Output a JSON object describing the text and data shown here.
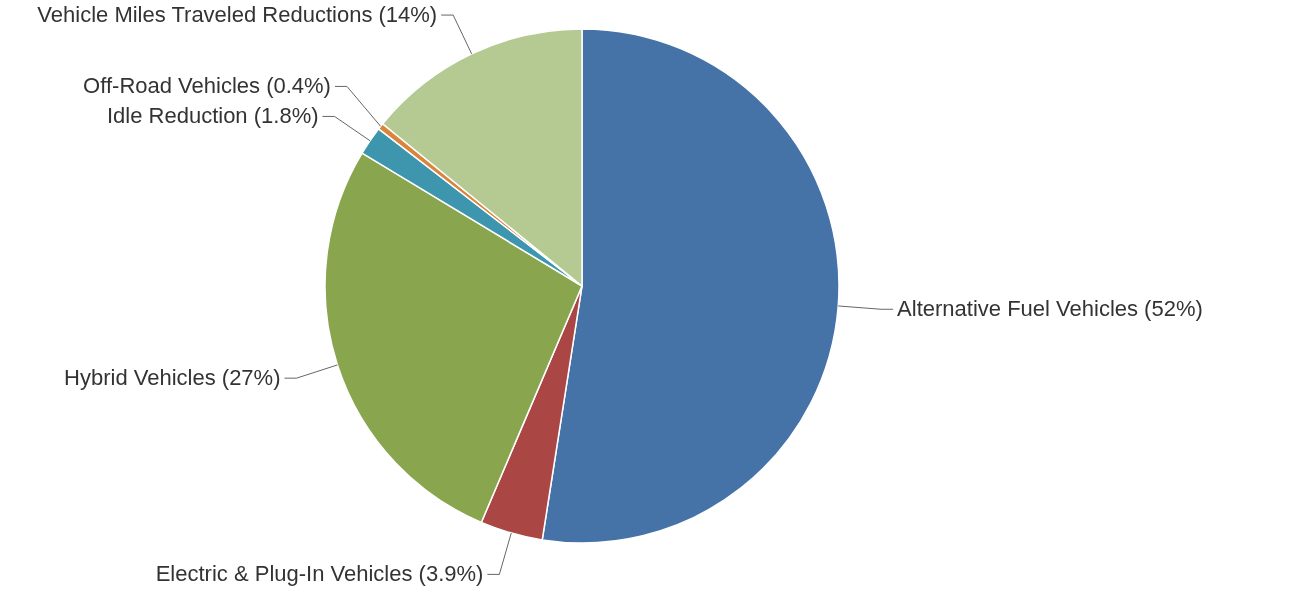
{
  "chart_data": {
    "type": "pie",
    "categories": [
      "Alternative Fuel Vehicles",
      "Electric & Plug-In Vehicles",
      "Hybrid Vehicles",
      "Idle Reduction",
      "Off-Road Vehicles",
      "Vehicle Miles Traveled Reductions"
    ],
    "values": [
      52,
      3.9,
      27,
      1.8,
      0.4,
      14
    ],
    "value_labels": [
      "(52%)",
      "(3.9%)",
      "(27%)",
      "(1.8%)",
      "(0.4%)",
      "(14%)"
    ],
    "colors": [
      "#4572a7",
      "#aa4643",
      "#89a54e",
      "#3d96ae",
      "#db843d",
      "#b5ca92"
    ]
  }
}
